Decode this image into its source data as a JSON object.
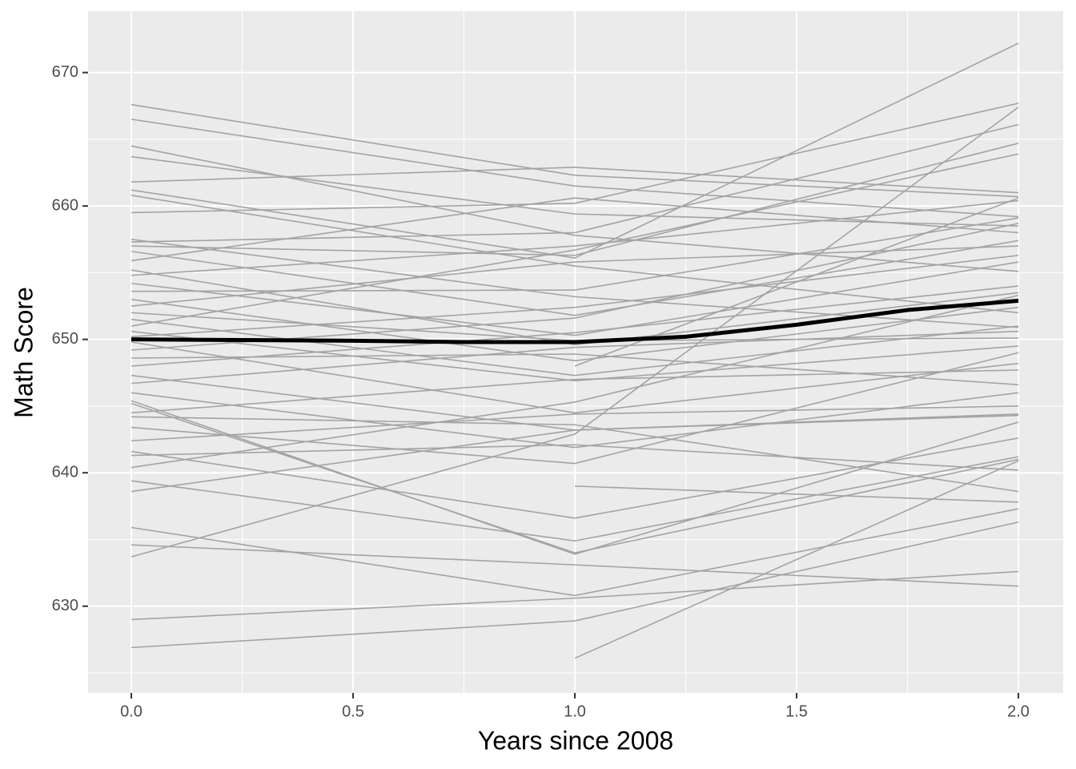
{
  "chart_data": {
    "type": "line",
    "x_label": "Years since 2008",
    "y_label": "Math Score",
    "x": [
      0,
      1,
      2
    ],
    "color": "#a3a3a3",
    "series": [
      {
        "values": [
          667.6,
          662.3,
          660.7
        ]
      },
      {
        "values": [
          666.5,
          661.5,
          659.2
        ]
      },
      {
        "values": [
          664.5,
          657.8,
          655.1
        ]
      },
      {
        "values": [
          663.7,
          659.4,
          658.5
        ]
      },
      {
        "values": [
          661.8,
          662.9,
          661.0
        ]
      },
      {
        "values": [
          661.2,
          656.1,
          672.2
        ]
      },
      {
        "values": [
          660.8,
          655.5,
          652.0
        ]
      },
      {
        "values": [
          659.5,
          660.2,
          667.7
        ]
      },
      {
        "values": [
          657.5,
          653.2,
          650.9
        ]
      },
      {
        "values": [
          657.0,
          656.3,
          664.7
        ]
      },
      {
        "values": [
          656.6,
          651.8,
          657.4
        ]
      },
      {
        "values": [
          655.9,
          660.6,
          658.0
        ]
      },
      {
        "values": [
          655.2,
          649.6,
          653.5
        ]
      },
      {
        "values": [
          654.8,
          657.0,
          660.4
        ]
      },
      {
        "values": [
          654.2,
          650.3,
          655.8
        ]
      },
      {
        "values": [
          653.6,
          653.7,
          659.1
        ]
      },
      {
        "values": [
          653.0,
          648.4,
          652.4
        ]
      },
      {
        "values": [
          652.5,
          655.8,
          657.0
        ]
      },
      {
        "values": [
          652.0,
          649.9,
          650.1
        ]
      },
      {
        "values": [
          651.5,
          647.3,
          651.0
        ]
      },
      {
        "values": [
          651.0,
          656.7,
          663.9
        ]
      },
      {
        "values": [
          650.6,
          646.9,
          649.5
        ]
      },
      {
        "values": [
          650.2,
          652.4,
          656.3
        ]
      },
      {
        "values": [
          649.8,
          644.5,
          648.2
        ]
      },
      {
        "values": [
          649.2,
          651.6,
          658.7
        ]
      },
      {
        "values": [
          648.6,
          648.9,
          646.6
        ]
      },
      {
        "values": [
          648.0,
          650.5,
          654.0
        ]
      },
      {
        "values": [
          647.3,
          643.2,
          644.4
        ]
      },
      {
        "values": [
          646.7,
          649.4,
          650.6
        ]
      },
      {
        "values": [
          646.0,
          641.9,
          646.0
        ]
      },
      {
        "values": [
          645.2,
          634.0,
          641.0
        ]
      },
      {
        "values": [
          644.5,
          647.0,
          647.7
        ]
      },
      {
        "values": [
          644.2,
          643.6,
          638.6
        ]
      },
      {
        "values": [
          643.4,
          640.7,
          649.0
        ]
      },
      {
        "values": [
          642.4,
          644.4,
          645.0
        ]
      },
      {
        "values": [
          641.6,
          636.6,
          642.6
        ]
      },
      {
        "values": [
          641.3,
          642.1,
          640.2
        ]
      },
      {
        "values": [
          640.4,
          645.3,
          653.3
        ]
      },
      {
        "values": [
          639.4,
          634.9,
          641.2
        ]
      },
      {
        "values": [
          638.6,
          643.2,
          644.3
        ]
      },
      {
        "values": [
          635.9,
          630.8,
          637.3
        ]
      },
      {
        "values": [
          634.6,
          633.1,
          631.5
        ]
      },
      {
        "values": [
          633.7,
          642.9,
          667.4
        ]
      },
      {
        "values": [
          629.0,
          630.6,
          632.6
        ]
      },
      {
        "values": [
          626.9,
          628.9,
          636.3
        ]
      },
      {
        "values": [
          null,
          626.1,
          640.9
        ]
      },
      {
        "values": [
          null,
          639.0,
          637.8
        ]
      },
      {
        "values": [
          null,
          648.0,
          660.6
        ]
      },
      {
        "values": [
          645.4,
          633.9,
          643.8
        ]
      },
      {
        "values": [
          657.3,
          658.0,
          666.1
        ]
      }
    ],
    "trend": {
      "color": "#000000",
      "x": [
        0,
        0.25,
        0.5,
        0.75,
        1,
        1.25,
        1.5,
        1.75,
        2
      ],
      "values": [
        650.0,
        649.95,
        649.9,
        649.8,
        649.8,
        650.2,
        651.1,
        652.2,
        652.9
      ]
    },
    "xlim": [
      -0.0975,
      2.101
    ],
    "ylim": [
      623.5,
      674.6
    ],
    "xticks": [
      {
        "value": 0,
        "label": "0.0"
      },
      {
        "value": 0.5,
        "label": "0.5"
      },
      {
        "value": 1,
        "label": "1.0"
      },
      {
        "value": 1.5,
        "label": "1.5"
      },
      {
        "value": 2,
        "label": "2.0"
      }
    ],
    "yticks": [
      630,
      640,
      650,
      660,
      670
    ],
    "minor_xticks": [
      0.25,
      0.75,
      1.25,
      1.75
    ],
    "minor_yticks": [
      625,
      635,
      645,
      655,
      665
    ],
    "grid": true
  }
}
